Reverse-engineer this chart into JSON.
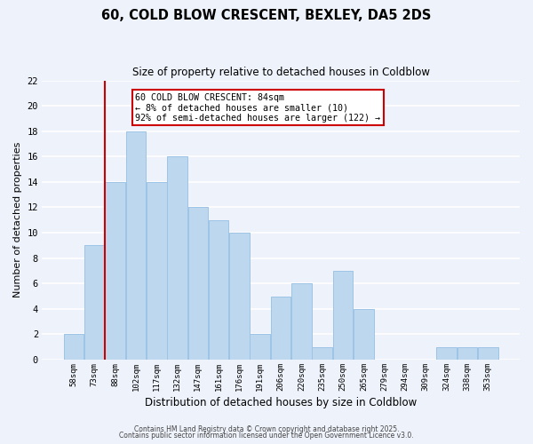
{
  "title": "60, COLD BLOW CRESCENT, BEXLEY, DA5 2DS",
  "subtitle": "Size of property relative to detached houses in Coldblow",
  "xlabel": "Distribution of detached houses by size in Coldblow",
  "ylabel": "Number of detached properties",
  "bin_labels": [
    "58sqm",
    "73sqm",
    "88sqm",
    "102sqm",
    "117sqm",
    "132sqm",
    "147sqm",
    "161sqm",
    "176sqm",
    "191sqm",
    "206sqm",
    "220sqm",
    "235sqm",
    "250sqm",
    "265sqm",
    "279sqm",
    "294sqm",
    "309sqm",
    "324sqm",
    "338sqm",
    "353sqm"
  ],
  "bar_values": [
    2,
    9,
    14,
    18,
    14,
    16,
    12,
    11,
    10,
    2,
    5,
    6,
    1,
    7,
    4,
    0,
    0,
    0,
    1,
    1,
    1
  ],
  "bar_color": "#bdd7ee",
  "bar_edge_color": "#9dc3e6",
  "bg_color": "#eef2fb",
  "grid_color": "#ffffff",
  "vline_color": "#cc0000",
  "vline_position": 1.5,
  "annotation_text": "60 COLD BLOW CRESCENT: 84sqm\n← 8% of detached houses are smaller (10)\n92% of semi-detached houses are larger (122) →",
  "annotation_box_color": "#ffffff",
  "annotation_box_edge": "#cc0000",
  "ylim": [
    0,
    22
  ],
  "yticks": [
    0,
    2,
    4,
    6,
    8,
    10,
    12,
    14,
    16,
    18,
    20,
    22
  ],
  "footer1": "Contains HM Land Registry data © Crown copyright and database right 2025.",
  "footer2": "Contains public sector information licensed under the Open Government Licence v3.0."
}
